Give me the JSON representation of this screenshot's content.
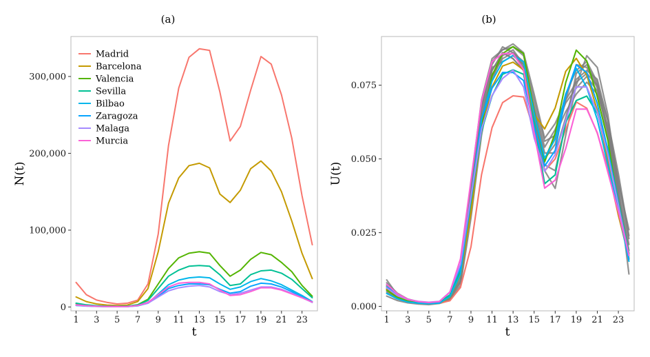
{
  "chart_data": [
    {
      "type": "line",
      "title": "(a)",
      "xlabel": "t",
      "ylabel": "N(t)",
      "xlim": [
        0.5,
        24.5
      ],
      "ylim": [
        -5000,
        352000
      ],
      "x_ticks": [
        1,
        3,
        5,
        7,
        9,
        11,
        13,
        15,
        17,
        19,
        21,
        23
      ],
      "y_ticks": [
        0,
        100000,
        200000,
        300000
      ],
      "y_tick_labels": [
        "0",
        "100,000",
        "200,000",
        "300,000"
      ],
      "grid": false,
      "legend_position": "top-left",
      "x": [
        1,
        2,
        3,
        4,
        5,
        6,
        7,
        8,
        9,
        10,
        11,
        12,
        13,
        14,
        15,
        16,
        17,
        18,
        19,
        20,
        21,
        22,
        23,
        24
      ],
      "series": [
        {
          "name": "Madrid",
          "color": "#f8766d",
          "values": [
            32000,
            16000,
            9000,
            6000,
            4000,
            5000,
            9000,
            30000,
            95000,
            210000,
            285000,
            325000,
            336000,
            334000,
            280000,
            216000,
            235000,
            282000,
            326000,
            316000,
            276000,
            220000,
            145000,
            81000
          ]
        },
        {
          "name": "Barcelona",
          "color": "#c49a00",
          "values": [
            13000,
            7000,
            4000,
            2500,
            2000,
            2500,
            7000,
            24000,
            72000,
            135000,
            168000,
            184000,
            187000,
            181000,
            147000,
            136000,
            152000,
            180000,
            190000,
            177000,
            150000,
            112000,
            70000,
            37000
          ]
        },
        {
          "name": "Valencia",
          "color": "#53b400",
          "values": [
            4500,
            2500,
            1500,
            1000,
            800,
            1000,
            3000,
            10000,
            30000,
            50000,
            64000,
            70000,
            72000,
            70000,
            54000,
            40000,
            48000,
            62000,
            71000,
            68000,
            58000,
            46000,
            28000,
            14000
          ]
        },
        {
          "name": "Sevilla",
          "color": "#00c094",
          "values": [
            5000,
            2800,
            1600,
            1000,
            800,
            1000,
            2600,
            8500,
            24000,
            40000,
            48000,
            53000,
            54000,
            53000,
            42000,
            28000,
            30000,
            42000,
            47000,
            48000,
            44000,
            36000,
            24000,
            12000
          ]
        },
        {
          "name": "Bilbao",
          "color": "#00b6eb",
          "values": [
            2000,
            1200,
            700,
            500,
            400,
            500,
            1500,
            5000,
            17000,
            29000,
            35000,
            38000,
            39000,
            38000,
            30000,
            23000,
            26000,
            33000,
            37000,
            34000,
            29000,
            22000,
            15000,
            7000
          ]
        },
        {
          "name": "Zaragoza",
          "color": "#06a4ff",
          "values": [
            2500,
            1500,
            900,
            600,
            500,
            600,
            1800,
            5000,
            14000,
            24000,
            28000,
            30000,
            30000,
            29000,
            23000,
            18000,
            20000,
            27000,
            31000,
            30000,
            26000,
            20000,
            13000,
            6000
          ]
        },
        {
          "name": "Malaga",
          "color": "#a58aff",
          "values": [
            2200,
            1300,
            800,
            600,
            500,
            600,
            1700,
            5000,
            13000,
            21000,
            25000,
            27000,
            28000,
            26000,
            20000,
            16000,
            18000,
            22000,
            26000,
            26000,
            23000,
            18000,
            12000,
            6000
          ]
        },
        {
          "name": "Murcia",
          "color": "#fb61d7",
          "values": [
            2800,
            1600,
            900,
            600,
            500,
            600,
            1800,
            6000,
            16000,
            26000,
            31000,
            32000,
            32000,
            30000,
            22000,
            15000,
            16000,
            20000,
            25000,
            25000,
            22000,
            17000,
            12000,
            6500
          ]
        }
      ]
    },
    {
      "type": "line",
      "title": "(b)",
      "xlabel": "t",
      "ylabel": "U(t)",
      "xlim": [
        0.5,
        24.5
      ],
      "ylim": [
        -0.0015,
        0.0915
      ],
      "x_ticks": [
        1,
        3,
        5,
        7,
        9,
        11,
        13,
        15,
        17,
        19,
        21,
        23
      ],
      "y_ticks": [
        0,
        0.025,
        0.05,
        0.075
      ],
      "y_tick_labels": [
        "0.000",
        "0.025",
        "0.050",
        "0.075"
      ],
      "grid": false,
      "x": [
        1,
        2,
        3,
        4,
        5,
        6,
        7,
        8,
        9,
        10,
        11,
        12,
        13,
        14,
        15,
        16,
        17,
        18,
        19,
        20,
        21,
        22,
        23,
        24
      ],
      "background_color": "#7f7f7f",
      "background_series": [
        [
          0.009,
          0.004,
          0.002,
          0.0015,
          0.001,
          0.0012,
          0.002,
          0.012,
          0.042,
          0.07,
          0.084,
          0.087,
          0.089,
          0.086,
          0.072,
          0.057,
          0.062,
          0.07,
          0.076,
          0.079,
          0.075,
          0.063,
          0.045,
          0.024
        ],
        [
          0.0045,
          0.003,
          0.002,
          0.0012,
          0.001,
          0.0015,
          0.003,
          0.009,
          0.035,
          0.063,
          0.08,
          0.086,
          0.084,
          0.08,
          0.065,
          0.05,
          0.058,
          0.072,
          0.08,
          0.083,
          0.076,
          0.06,
          0.038,
          0.018
        ],
        [
          0.0035,
          0.002,
          0.0012,
          0.0008,
          0.0006,
          0.001,
          0.002,
          0.007,
          0.03,
          0.058,
          0.077,
          0.085,
          0.087,
          0.082,
          0.065,
          0.046,
          0.04,
          0.058,
          0.075,
          0.085,
          0.081,
          0.065,
          0.04,
          0.011
        ],
        [
          0.006,
          0.0035,
          0.002,
          0.0014,
          0.0012,
          0.0016,
          0.0028,
          0.01,
          0.04,
          0.068,
          0.082,
          0.088,
          0.086,
          0.083,
          0.068,
          0.054,
          0.06,
          0.069,
          0.074,
          0.078,
          0.073,
          0.06,
          0.04,
          0.021
        ],
        [
          0.005,
          0.003,
          0.0018,
          0.0012,
          0.001,
          0.0014,
          0.0025,
          0.008,
          0.033,
          0.061,
          0.078,
          0.084,
          0.086,
          0.081,
          0.066,
          0.05,
          0.055,
          0.07,
          0.082,
          0.081,
          0.074,
          0.058,
          0.036,
          0.016
        ],
        [
          0.007,
          0.004,
          0.0022,
          0.0015,
          0.0012,
          0.0015,
          0.0027,
          0.011,
          0.037,
          0.066,
          0.081,
          0.083,
          0.085,
          0.082,
          0.067,
          0.052,
          0.052,
          0.064,
          0.077,
          0.08,
          0.077,
          0.063,
          0.042,
          0.026
        ],
        [
          0.0055,
          0.0032,
          0.0019,
          0.0013,
          0.0011,
          0.0014,
          0.0026,
          0.0085,
          0.036,
          0.064,
          0.08,
          0.086,
          0.084,
          0.08,
          0.063,
          0.048,
          0.046,
          0.062,
          0.079,
          0.082,
          0.075,
          0.059,
          0.038,
          0.019
        ],
        [
          0.008,
          0.0045,
          0.0025,
          0.0016,
          0.0012,
          0.0015,
          0.0028,
          0.011,
          0.039,
          0.067,
          0.083,
          0.087,
          0.088,
          0.085,
          0.07,
          0.056,
          0.058,
          0.066,
          0.072,
          0.076,
          0.072,
          0.061,
          0.043,
          0.023
        ]
      ],
      "series": [
        {
          "name": "Madrid",
          "color": "#f8766d",
          "values": [
            0.0068,
            0.0034,
            0.0019,
            0.0013,
            0.0009,
            0.0011,
            0.0019,
            0.0064,
            0.0202,
            0.0446,
            0.0606,
            0.0691,
            0.0714,
            0.071,
            0.0595,
            0.0459,
            0.05,
            0.06,
            0.0693,
            0.0672,
            0.0587,
            0.0468,
            0.0308,
            0.0172
          ]
        },
        {
          "name": "Barcelona",
          "color": "#c49a00",
          "values": [
            0.0058,
            0.0031,
            0.0018,
            0.0011,
            0.0009,
            0.0011,
            0.0031,
            0.0106,
            0.0319,
            0.0598,
            0.0744,
            0.0815,
            0.0828,
            0.0802,
            0.0651,
            0.0602,
            0.0673,
            0.0797,
            0.0841,
            0.0784,
            0.0664,
            0.0496,
            0.031,
            0.0164
          ]
        },
        {
          "name": "Valencia",
          "color": "#53b400",
          "values": [
            0.0055,
            0.0031,
            0.0018,
            0.0012,
            0.001,
            0.0012,
            0.0037,
            0.0122,
            0.0367,
            0.0612,
            0.0783,
            0.0857,
            0.0881,
            0.0857,
            0.0661,
            0.049,
            0.0588,
            0.0759,
            0.0869,
            0.0832,
            0.071,
            0.0563,
            0.0343,
            0.0171
          ]
        },
        {
          "name": "Sevilla",
          "color": "#00c094",
          "values": [
            0.0074,
            0.0042,
            0.0024,
            0.0015,
            0.0012,
            0.0015,
            0.0039,
            0.0126,
            0.0356,
            0.0594,
            0.0713,
            0.0787,
            0.0802,
            0.0787,
            0.0624,
            0.0416,
            0.0446,
            0.0624,
            0.0698,
            0.0713,
            0.0654,
            0.0535,
            0.0356,
            0.0178
          ]
        },
        {
          "name": "Bilbao",
          "color": "#00b6eb",
          "values": [
            0.0044,
            0.0026,
            0.0015,
            0.0011,
            0.0009,
            0.0011,
            0.0033,
            0.0109,
            0.0371,
            0.0633,
            0.0764,
            0.0829,
            0.0851,
            0.0829,
            0.0655,
            0.0502,
            0.0568,
            0.072,
            0.0807,
            0.0742,
            0.0633,
            0.048,
            0.0327,
            0.0153
          ]
        },
        {
          "name": "Zaragoza",
          "color": "#06a4ff",
          "values": [
            0.0066,
            0.004,
            0.0024,
            0.0016,
            0.0013,
            0.0016,
            0.0048,
            0.0132,
            0.037,
            0.0634,
            0.074,
            0.0793,
            0.0793,
            0.0766,
            0.0608,
            0.0476,
            0.0529,
            0.0714,
            0.0819,
            0.0793,
            0.0687,
            0.0529,
            0.0344,
            0.0159
          ]
        },
        {
          "name": "Malaga",
          "color": "#a58aff",
          "values": [
            0.0063,
            0.0037,
            0.0023,
            0.0017,
            0.0014,
            0.0017,
            0.0049,
            0.0143,
            0.0372,
            0.0601,
            0.0715,
            0.0773,
            0.0801,
            0.0744,
            0.0572,
            0.0458,
            0.0515,
            0.063,
            0.0744,
            0.0744,
            0.0658,
            0.0515,
            0.0343,
            0.0172
          ]
        },
        {
          "name": "Murcia",
          "color": "#fb61d7",
          "values": [
            0.0075,
            0.0043,
            0.0024,
            0.0016,
            0.0013,
            0.0016,
            0.0048,
            0.0161,
            0.0428,
            0.0696,
            0.083,
            0.0857,
            0.0857,
            0.0803,
            0.0589,
            0.0401,
            0.0428,
            0.0535,
            0.0669,
            0.0669,
            0.0589,
            0.0455,
            0.0321,
            0.0174
          ]
        }
      ]
    }
  ]
}
